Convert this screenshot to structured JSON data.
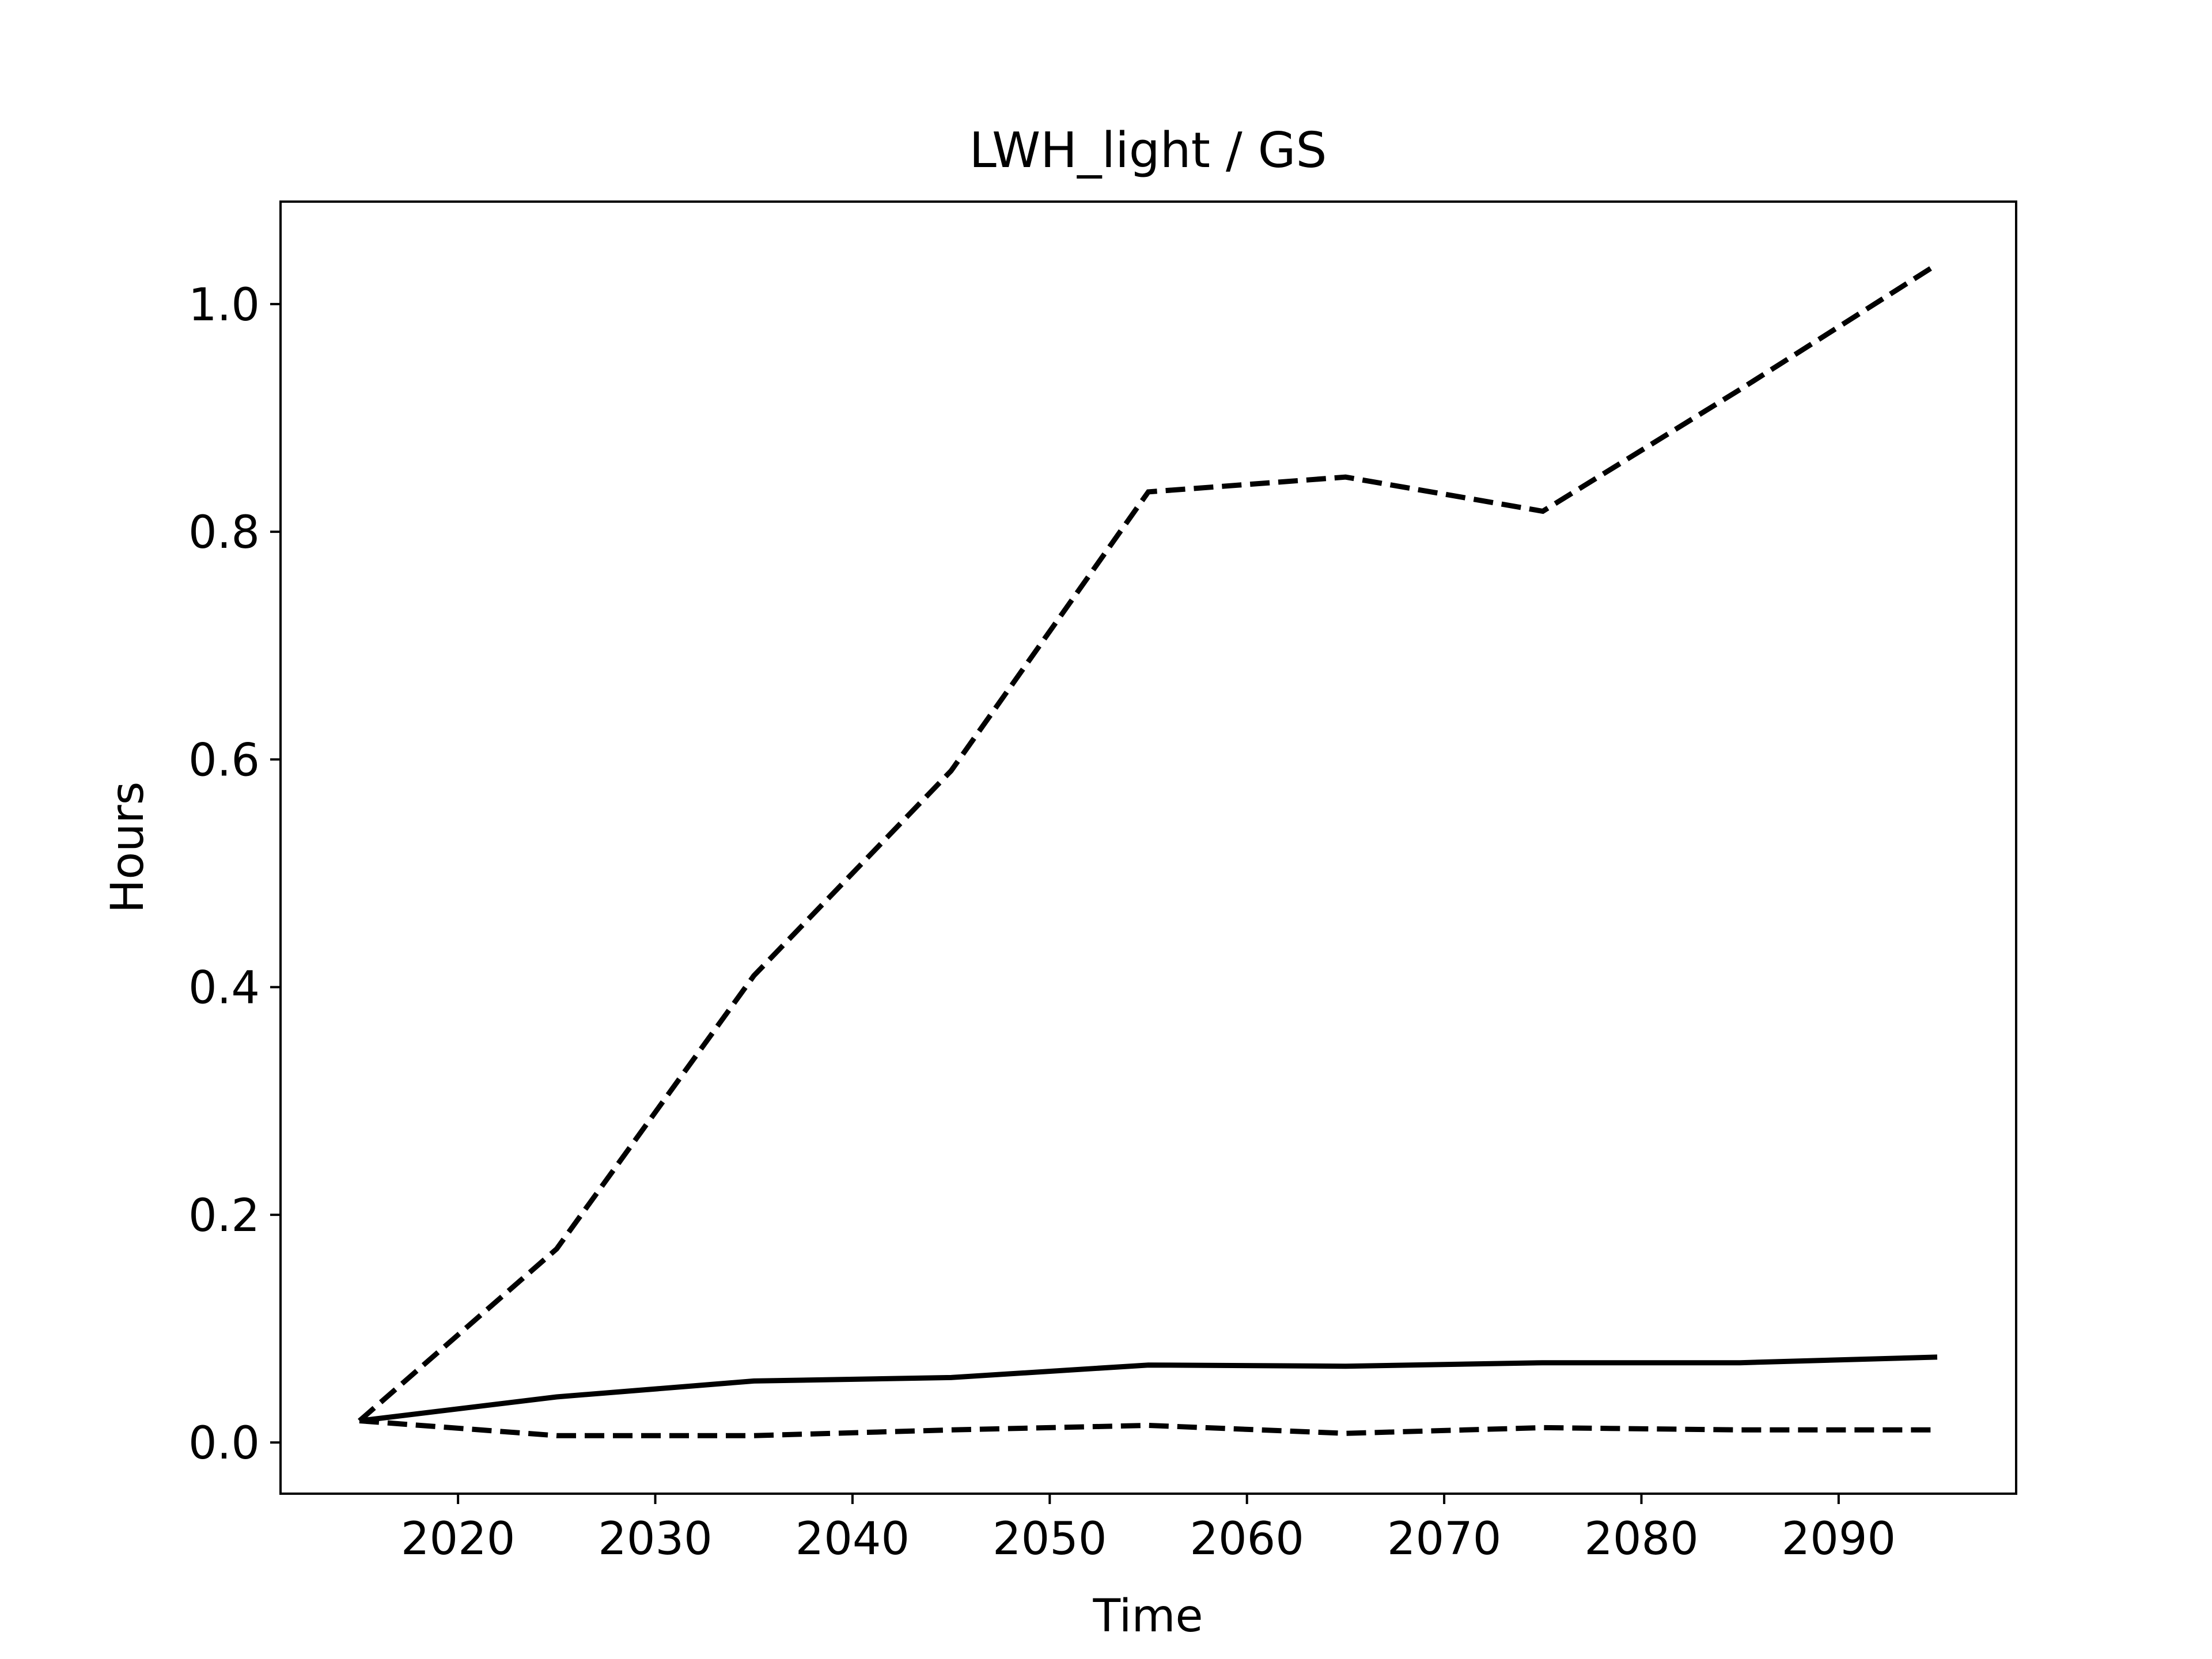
{
  "chart_data": {
    "type": "line",
    "title": "LWH_light / GS",
    "xlabel": "Time",
    "ylabel": "Hours",
    "xlim": [
      2011,
      2099
    ],
    "ylim": [
      -0.045,
      1.09
    ],
    "xticks": [
      2020,
      2030,
      2040,
      2050,
      2060,
      2070,
      2080,
      2090
    ],
    "yticks": [
      0.0,
      0.2,
      0.4,
      0.6,
      0.8,
      1.0
    ],
    "ytick_labels": [
      "0.0",
      "0.2",
      "0.4",
      "0.6",
      "0.8",
      "1.0"
    ],
    "grid": false,
    "legend": "none",
    "x": [
      2015,
      2025,
      2035,
      2045,
      2055,
      2065,
      2075,
      2085,
      2095
    ],
    "series": [
      {
        "style": "solid",
        "color": "#000000",
        "values": [
          0.019,
          0.04,
          0.054,
          0.057,
          0.068,
          0.067,
          0.07,
          0.07,
          0.075
        ]
      },
      {
        "style": "dashed",
        "color": "#000000",
        "values": [
          0.019,
          0.17,
          0.41,
          0.59,
          0.835,
          0.848,
          0.818,
          0.925,
          1.035
        ]
      },
      {
        "style": "dashed",
        "color": "#000000",
        "values": [
          0.019,
          0.006,
          0.006,
          0.011,
          0.015,
          0.008,
          0.013,
          0.011,
          0.011
        ]
      }
    ]
  }
}
